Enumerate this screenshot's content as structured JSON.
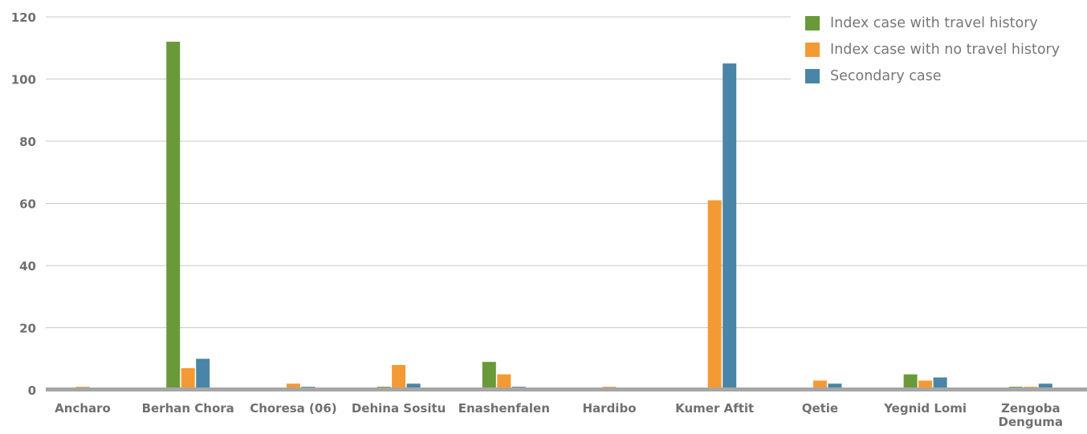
{
  "colors": {
    "travel": "#6a993a",
    "no_travel": "#f39a34",
    "secondary": "#4985a6",
    "grid": "#c8c8c8",
    "axis": "#a6a6a6",
    "text": "#707070"
  },
  "legend": {
    "items": [
      {
        "label": "Index case with travel history",
        "color": "#6a993a"
      },
      {
        "label": "Index case with no travel history",
        "color": "#f39a34"
      },
      {
        "label": "Secondary case",
        "color": "#4985a6"
      }
    ]
  },
  "chart_data": {
    "type": "bar",
    "categories": [
      "Ancharo",
      "Berhan Chora",
      "Choresa (06)",
      "Dehina Sositu",
      "Enashenfalen",
      "Hardibo",
      "Kumer Aftit",
      "Qetie",
      "Yegnid Lomi",
      "Zengoba Denguma"
    ],
    "series": [
      {
        "name": "Index case with travel history",
        "color": "#6a993a",
        "values": [
          0,
          112,
          0,
          1,
          9,
          0,
          0,
          0,
          5,
          1
        ]
      },
      {
        "name": "Index case with no travel history",
        "color": "#f39a34",
        "values": [
          1,
          7,
          2,
          8,
          5,
          1,
          61,
          3,
          3,
          1
        ]
      },
      {
        "name": "Secondary case",
        "color": "#4985a6",
        "values": [
          0,
          10,
          1,
          2,
          1,
          0,
          105,
          2,
          4,
          2
        ]
      }
    ],
    "y_ticks": [
      "0",
      "20",
      "40",
      "60",
      "80",
      "100",
      "120"
    ],
    "ylim": [
      0,
      120
    ],
    "grid": true,
    "legend_position": "top-right"
  }
}
